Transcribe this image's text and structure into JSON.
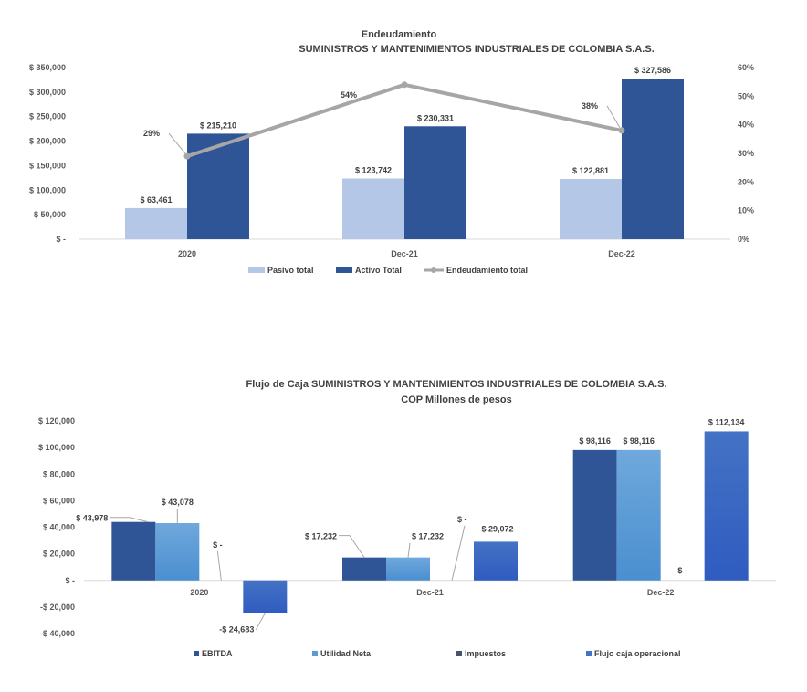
{
  "colors": {
    "pasivo": "#b4c7e7",
    "activo": "#2f5597",
    "line": "#a6a6a6",
    "ebitda": "#2f5597",
    "utilidad": "#5b9bd5",
    "impuestos": "#44546a",
    "flujo": "#4472c4"
  },
  "chart_data": [
    {
      "type": "bar",
      "title": "Endeudamiento",
      "subtitle": "SUMINISTROS Y MANTENIMIENTOS INDUSTRIALES DE COLOMBIA S.A.S.",
      "categories": [
        "2020",
        "Dec-21",
        "Dec-22"
      ],
      "series": [
        {
          "name": "Pasivo total",
          "values": [
            63461,
            123742,
            122881
          ],
          "labels": [
            "$ 63,461",
            "$ 123,742",
            "$ 122,881"
          ]
        },
        {
          "name": "Activo Total",
          "values": [
            215210,
            230331,
            327586
          ],
          "labels": [
            "$ 215,210",
            "$ 230,331",
            "$ 327,586"
          ]
        }
      ],
      "line_series": {
        "name": "Endeudamiento total",
        "values": [
          29,
          54,
          38
        ],
        "labels": [
          "29%",
          "54%",
          "38%"
        ],
        "axis": "secondary"
      },
      "ylim": [
        0,
        350000
      ],
      "yticks": [
        "$ -",
        "$ 50,000",
        "$ 100,000",
        "$ 150,000",
        "$ 200,000",
        "$ 250,000",
        "$ 300,000",
        "$ 350,000"
      ],
      "y2lim": [
        0,
        60
      ],
      "y2ticks": [
        "0%",
        "10%",
        "20%",
        "30%",
        "40%",
        "50%",
        "60%"
      ],
      "legend": "bottom",
      "grid": false
    },
    {
      "type": "bar",
      "title": "Flujo de Caja SUMINISTROS Y MANTENIMIENTOS INDUSTRIALES DE COLOMBIA S.A.S.",
      "subtitle": "COP Millones de pesos",
      "categories": [
        "2020",
        "Dec-21",
        "Dec-22"
      ],
      "series": [
        {
          "name": "EBITDA",
          "values": [
            43978,
            17232,
            98116
          ],
          "labels": [
            "$ 43,978",
            "$ 17,232",
            "$ 98,116"
          ]
        },
        {
          "name": "Utilidad Neta",
          "values": [
            43078,
            17232,
            98116
          ],
          "labels": [
            "$ 43,078",
            "$ 17,232",
            "$ 98,116"
          ]
        },
        {
          "name": "Impuestos",
          "values": [
            0,
            0,
            0
          ],
          "labels": [
            "$ -",
            "$ -",
            "$ -"
          ]
        },
        {
          "name": "Flujo caja operacional",
          "values": [
            -24683,
            29072,
            112134
          ],
          "labels": [
            "-$ 24,683",
            "$ 29,072",
            "$ 112,134"
          ]
        }
      ],
      "ylim": [
        -40000,
        120000
      ],
      "yticks": [
        "-$ 40,000",
        "-$ 20,000",
        "$ -",
        "$ 20,000",
        "$ 40,000",
        "$ 60,000",
        "$ 80,000",
        "$ 100,000",
        "$ 120,000"
      ],
      "legend": "bottom",
      "grid": false
    }
  ]
}
